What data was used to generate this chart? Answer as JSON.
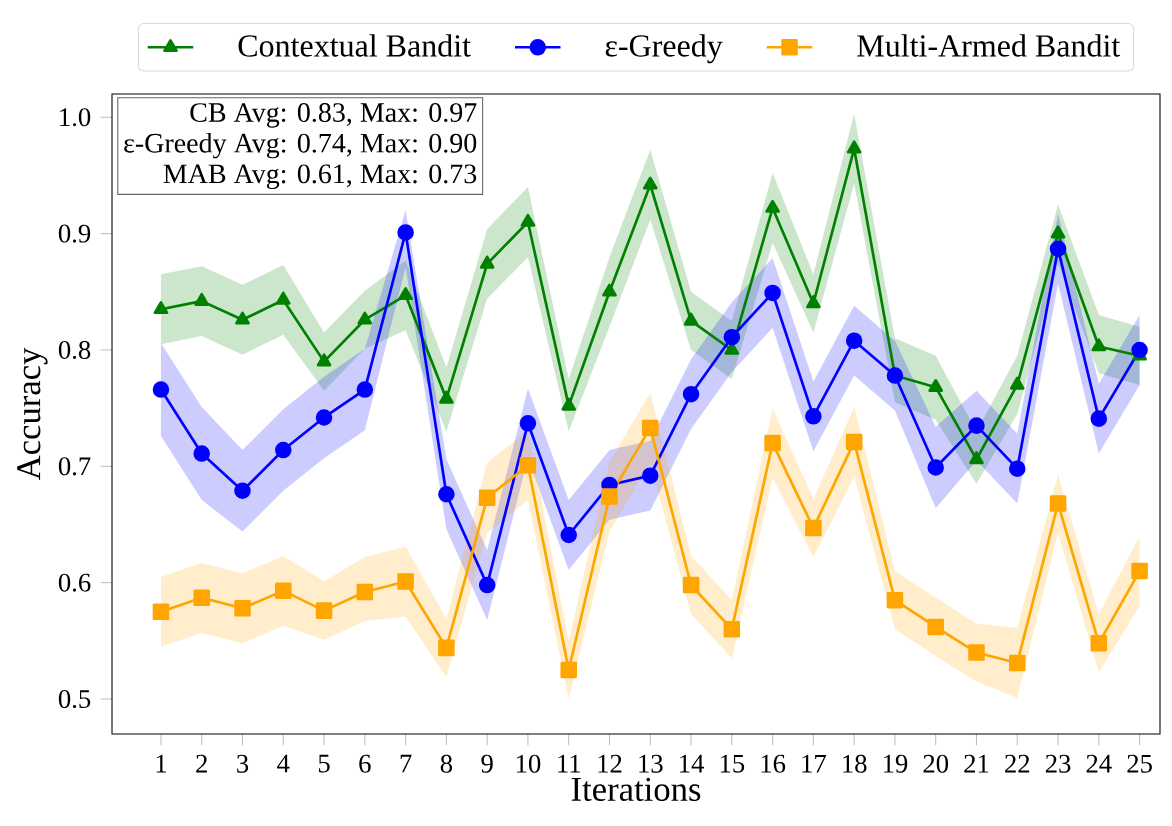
{
  "chart_data": {
    "type": "line",
    "xlabel": "Iterations",
    "ylabel": "Accuracy",
    "x": [
      1,
      2,
      3,
      4,
      5,
      6,
      7,
      8,
      9,
      10,
      11,
      12,
      13,
      14,
      15,
      16,
      17,
      18,
      19,
      20,
      21,
      22,
      23,
      24,
      25
    ],
    "series": [
      {
        "name": "Contextual Bandit",
        "color": "#008000",
        "marker": "triangle",
        "values": [
          0.835,
          0.842,
          0.826,
          0.843,
          0.79,
          0.826,
          0.847,
          0.758,
          0.874,
          0.91,
          0.752,
          0.85,
          0.942,
          0.825,
          0.8,
          0.922,
          0.84,
          0.973,
          0.778,
          0.768,
          0.706,
          0.77,
          0.9,
          0.803,
          0.795
        ],
        "lower": [
          0.805,
          0.812,
          0.796,
          0.813,
          0.765,
          0.801,
          0.817,
          0.73,
          0.844,
          0.88,
          0.73,
          0.82,
          0.912,
          0.8,
          0.775,
          0.892,
          0.815,
          0.943,
          0.755,
          0.74,
          0.685,
          0.745,
          0.875,
          0.78,
          0.77
        ],
        "upper": [
          0.865,
          0.872,
          0.856,
          0.873,
          0.815,
          0.851,
          0.877,
          0.785,
          0.904,
          0.94,
          0.775,
          0.88,
          0.972,
          0.85,
          0.825,
          0.952,
          0.865,
          1.003,
          0.81,
          0.795,
          0.73,
          0.795,
          0.925,
          0.83,
          0.82
        ]
      },
      {
        "name": "ε-Greedy",
        "color": "#0000ff",
        "marker": "circle",
        "values": [
          0.766,
          0.711,
          0.679,
          0.714,
          0.742,
          0.766,
          0.901,
          0.676,
          0.598,
          0.737,
          0.641,
          0.684,
          0.692,
          0.762,
          0.811,
          0.849,
          0.743,
          0.808,
          0.778,
          0.699,
          0.735,
          0.698,
          0.887,
          0.741,
          0.8
        ],
        "lower": [
          0.726,
          0.671,
          0.644,
          0.679,
          0.707,
          0.731,
          0.871,
          0.646,
          0.568,
          0.707,
          0.611,
          0.654,
          0.662,
          0.732,
          0.781,
          0.819,
          0.713,
          0.778,
          0.748,
          0.664,
          0.705,
          0.668,
          0.857,
          0.711,
          0.77
        ],
        "upper": [
          0.806,
          0.751,
          0.714,
          0.749,
          0.777,
          0.801,
          0.92,
          0.706,
          0.628,
          0.767,
          0.671,
          0.714,
          0.722,
          0.792,
          0.841,
          0.879,
          0.773,
          0.838,
          0.808,
          0.734,
          0.765,
          0.728,
          0.917,
          0.771,
          0.83
        ]
      },
      {
        "name": "Multi-Armed Bandit",
        "color": "#ffa500",
        "marker": "square",
        "values": [
          0.575,
          0.587,
          0.578,
          0.593,
          0.576,
          0.592,
          0.601,
          0.544,
          0.673,
          0.701,
          0.525,
          0.674,
          0.733,
          0.598,
          0.56,
          0.72,
          0.647,
          0.721,
          0.585,
          0.562,
          0.54,
          0.531,
          0.668,
          0.548,
          0.61
        ],
        "lower": [
          0.545,
          0.557,
          0.548,
          0.563,
          0.551,
          0.567,
          0.571,
          0.519,
          0.643,
          0.671,
          0.5,
          0.644,
          0.703,
          0.573,
          0.535,
          0.69,
          0.622,
          0.691,
          0.56,
          0.537,
          0.515,
          0.501,
          0.643,
          0.523,
          0.58
        ],
        "upper": [
          0.605,
          0.617,
          0.608,
          0.623,
          0.601,
          0.622,
          0.631,
          0.569,
          0.703,
          0.731,
          0.55,
          0.704,
          0.763,
          0.623,
          0.585,
          0.75,
          0.672,
          0.751,
          0.61,
          0.587,
          0.565,
          0.561,
          0.693,
          0.573,
          0.64
        ]
      }
    ],
    "annotations": [
      "CB Avg: 0.83, Max: 0.97",
      "ε-Greedy Avg: 0.74, Max: 0.90",
      "MAB Avg: 0.61, Max: 0.73"
    ],
    "xlim": [
      -0.2,
      25.5
    ],
    "ylim": [
      0.47,
      1.02
    ],
    "xticks": [
      1,
      2,
      3,
      4,
      5,
      6,
      7,
      8,
      9,
      10,
      11,
      12,
      13,
      14,
      15,
      16,
      17,
      18,
      19,
      20,
      21,
      22,
      23,
      24,
      25
    ],
    "yticks": [
      {
        "value": 0.5,
        "label": "0.5"
      },
      {
        "value": 0.6,
        "label": "0.6"
      },
      {
        "value": 0.7,
        "label": "0.7"
      },
      {
        "value": 0.8,
        "label": "0.8"
      },
      {
        "value": 0.9,
        "label": "0.9"
      },
      {
        "value": 1.0,
        "label": "1.0"
      }
    ],
    "grid": false,
    "legend": "top",
    "line_style": "solid"
  }
}
